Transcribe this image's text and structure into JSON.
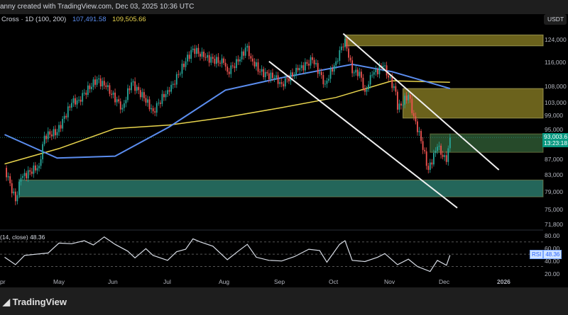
{
  "header": {
    "attribution": "anny created with TradingView.com, Dec 03, 2025 10:36 UTC"
  },
  "legend": {
    "title": "Cross · 1D (100, 200)",
    "ma100": "107,491.58",
    "ma200": "109,505.66"
  },
  "currency": "USDT",
  "price_tag": {
    "price": "93,003.6",
    "countdown": "13:23:18"
  },
  "rsi": {
    "legend": "(14, close)",
    "value": "48.36",
    "tag": "RSI",
    "scale": [
      "80.00",
      "60.00",
      "40.00",
      "20.00"
    ]
  },
  "footer": {
    "logo": "TradingView"
  },
  "colors": {
    "up": "#26a69a",
    "down": "#ef5350",
    "ma100": "#5b8def",
    "ma200": "#e8d44d",
    "zone_yellow": "#6b621c",
    "zone_green": "#264a2a",
    "zone_teal": "#24665a",
    "rsi": "#d8dde6"
  },
  "chart_data": {
    "type": "candlestick",
    "title": "Cross · 1D (100, 200)",
    "y_ticks": [
      "124,000",
      "116,000",
      "108,000",
      "103,000",
      "99,000",
      "95,000",
      "87,000",
      "83,000",
      "79,000",
      "75,000",
      "71,800"
    ],
    "x_ticks": [
      "pr",
      "May",
      "Jun",
      "Jul",
      "Aug",
      "Sep",
      "Oct",
      "Nov",
      "Dec",
      "2026"
    ],
    "ylim": [
      71800,
      126500
    ],
    "close_points": [
      [
        "04-01",
        85000
      ],
      [
        "04-07",
        77000
      ],
      [
        "04-10",
        82500
      ],
      [
        "04-20",
        85500
      ],
      [
        "04-23",
        93500
      ],
      [
        "04-30",
        94500
      ],
      [
        "05-08",
        103000
      ],
      [
        "05-12",
        104000
      ],
      [
        "05-22",
        110500
      ],
      [
        "05-27",
        108000
      ],
      [
        "06-05",
        101500
      ],
      [
        "06-10",
        109500
      ],
      [
        "06-17",
        104500
      ],
      [
        "06-22",
        100500
      ],
      [
        "06-30",
        107000
      ],
      [
        "07-03",
        109000
      ],
      [
        "07-10",
        116500
      ],
      [
        "07-14",
        121000
      ],
      [
        "07-20",
        118000
      ],
      [
        "07-31",
        116000
      ],
      [
        "08-02",
        113000
      ],
      [
        "08-08",
        116500
      ],
      [
        "08-13",
        122000
      ],
      [
        "08-15",
        117500
      ],
      [
        "08-20",
        113000
      ],
      [
        "08-28",
        111000
      ],
      [
        "09-01",
        109000
      ],
      [
        "09-10",
        113500
      ],
      [
        "09-18",
        117000
      ],
      [
        "09-25",
        109000
      ],
      [
        "10-01",
        116500
      ],
      [
        "10-06",
        124500
      ],
      [
        "10-10",
        112500
      ],
      [
        "10-14",
        113000
      ],
      [
        "10-17",
        106500
      ],
      [
        "10-21",
        112000
      ],
      [
        "10-27",
        115000
      ],
      [
        "11-03",
        106500
      ],
      [
        "11-04",
        101000
      ],
      [
        "11-10",
        105500
      ],
      [
        "11-13",
        99000
      ],
      [
        "11-17",
        92000
      ],
      [
        "11-21",
        84500
      ],
      [
        "11-26",
        90500
      ],
      [
        "12-01",
        86500
      ],
      [
        "12-03",
        93003.6
      ]
    ],
    "ma100": [
      [
        "04-01",
        93800
      ],
      [
        "04-30",
        87500
      ],
      [
        "06-01",
        88000
      ],
      [
        "07-01",
        96000
      ],
      [
        "08-01",
        107000
      ],
      [
        "09-01",
        111000
      ],
      [
        "10-10",
        115500
      ],
      [
        "11-01",
        113000
      ],
      [
        "12-03",
        107491.58
      ]
    ],
    "ma200": [
      [
        "04-01",
        86000
      ],
      [
        "05-01",
        90000
      ],
      [
        "06-01",
        95500
      ],
      [
        "07-01",
        96500
      ],
      [
        "08-01",
        98700
      ],
      [
        "09-01",
        101600
      ],
      [
        "10-01",
        104700
      ],
      [
        "11-01",
        110000
      ],
      [
        "12-03",
        109505.66
      ]
    ],
    "zones": [
      {
        "name": "supply-zone-top",
        "from": "10-06",
        "low": 122000,
        "high": 126000,
        "color": "zone_yellow"
      },
      {
        "name": "supply-zone-mid",
        "from": "11-07",
        "low": 98500,
        "high": 107500,
        "color": "zone_yellow"
      },
      {
        "name": "resistance-zone",
        "from": "11-22",
        "low": 89000,
        "high": 94000,
        "color": "zone_green"
      },
      {
        "name": "support-zone",
        "from": "04-09",
        "low": 78000,
        "high": 82000,
        "color": "zone_teal"
      }
    ],
    "trendlines": [
      {
        "name": "channel-upper",
        "from": [
          "10-05",
          126500
        ],
        "to": [
          "12-30",
          84500
        ]
      },
      {
        "name": "channel-lower",
        "from": [
          "08-25",
          116500
        ],
        "to": [
          "12-07",
          75500
        ]
      }
    ],
    "rsi_points": [
      [
        "04-01",
        45
      ],
      [
        "04-07",
        33
      ],
      [
        "04-12",
        48
      ],
      [
        "04-25",
        52
      ],
      [
        "05-01",
        68
      ],
      [
        "05-08",
        67
      ],
      [
        "05-15",
        72
      ],
      [
        "05-20",
        65
      ],
      [
        "05-26",
        78
      ],
      [
        "06-01",
        66
      ],
      [
        "06-08",
        55
      ],
      [
        "06-12",
        44
      ],
      [
        "06-18",
        59
      ],
      [
        "06-22",
        48
      ],
      [
        "06-30",
        40
      ],
      [
        "07-05",
        54
      ],
      [
        "07-10",
        58
      ],
      [
        "07-14",
        75
      ],
      [
        "07-18",
        70
      ],
      [
        "07-25",
        63
      ],
      [
        "08-02",
        41
      ],
      [
        "08-08",
        55
      ],
      [
        "08-13",
        66
      ],
      [
        "08-18",
        45
      ],
      [
        "08-25",
        40
      ],
      [
        "09-01",
        39
      ],
      [
        "09-08",
        46
      ],
      [
        "09-16",
        58
      ],
      [
        "09-22",
        56
      ],
      [
        "09-26",
        37
      ],
      [
        "10-03",
        66
      ],
      [
        "10-06",
        72
      ],
      [
        "10-10",
        40
      ],
      [
        "10-17",
        38
      ],
      [
        "10-24",
        45
      ],
      [
        "10-28",
        51
      ],
      [
        "11-04",
        33
      ],
      [
        "11-10",
        42
      ],
      [
        "11-15",
        30
      ],
      [
        "11-22",
        22
      ],
      [
        "11-26",
        40
      ],
      [
        "12-01",
        32
      ],
      [
        "12-03",
        48.36
      ]
    ]
  }
}
